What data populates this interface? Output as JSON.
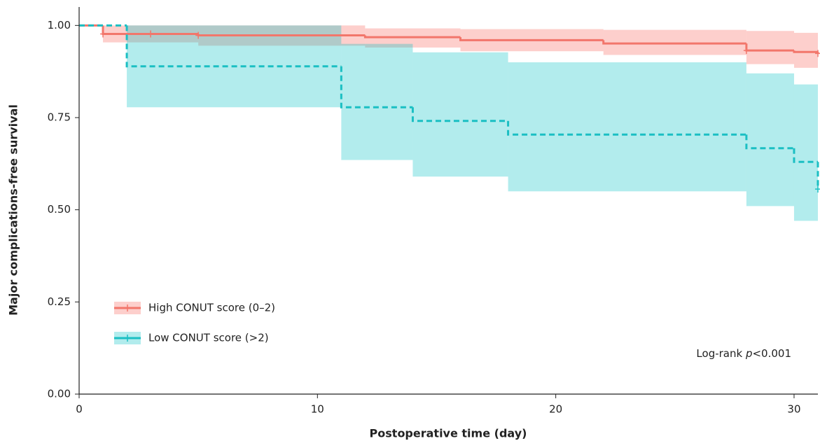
{
  "chart_data": {
    "type": "km",
    "x_label": "Postoperative time (day)",
    "y_label": "Major complications-free survival",
    "xlim": [
      0,
      31
    ],
    "ylim": [
      0,
      1.05
    ],
    "xticks": [
      0,
      10,
      20,
      30
    ],
    "yticks": [
      {
        "value": 0,
        "label": "0.00"
      },
      {
        "value": 0.25,
        "label": "0.25"
      },
      {
        "value": 0.5,
        "label": "0.50"
      },
      {
        "value": 0.75,
        "label": "0.75"
      },
      {
        "value": 1,
        "label": "1.00"
      }
    ],
    "legend_position": "lower left",
    "annotation": {
      "prefix": "Log-rank ",
      "italic": "p",
      "suffix": "<0.001"
    },
    "series": [
      {
        "name": "High CONUT score (0–2)",
        "color": "#f2766b",
        "band_color": "rgba(248,118,109,0.35)",
        "linestyle": "solid",
        "x": [
          0,
          1,
          5,
          12,
          16,
          22,
          28,
          30,
          31
        ],
        "values": [
          1.0,
          0.977,
          0.973,
          0.968,
          0.96,
          0.951,
          0.932,
          0.928,
          0.924
        ],
        "lower": [
          1.0,
          0.954,
          0.945,
          0.94,
          0.93,
          0.92,
          0.895,
          0.885,
          0.885
        ],
        "upper": [
          1.0,
          1.0,
          1.0,
          0.992,
          0.99,
          0.988,
          0.985,
          0.98,
          0.98
        ],
        "censored_x": [
          1,
          3,
          5,
          28,
          31
        ]
      },
      {
        "name": "Low CONUT score (>2)",
        "color": "#1bbfc3",
        "band_color": "rgba(0,191,196,0.3)",
        "linestyle": "dashed",
        "x": [
          0,
          2,
          11,
          14,
          18,
          28,
          30,
          31
        ],
        "values": [
          1.0,
          0.889,
          0.778,
          0.741,
          0.704,
          0.667,
          0.63,
          0.556
        ],
        "lower": [
          1.0,
          0.778,
          0.635,
          0.59,
          0.55,
          0.51,
          0.47,
          0.47
        ],
        "upper": [
          1.0,
          1.0,
          0.95,
          0.927,
          0.9,
          0.87,
          0.84,
          0.84
        ],
        "censored_x": [
          31
        ]
      }
    ]
  }
}
